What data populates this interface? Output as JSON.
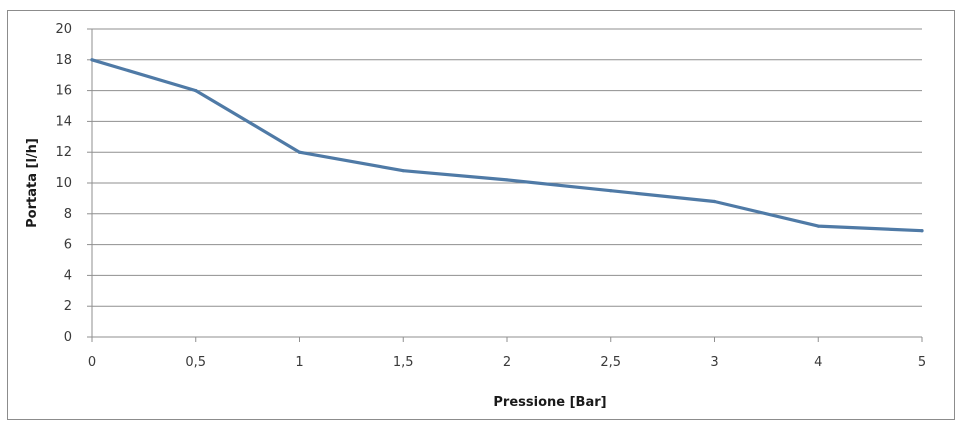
{
  "chart_data": {
    "type": "line",
    "title": "",
    "xlabel": "Pressione [Bar]",
    "ylabel": "Portata [l/h]",
    "x_tick_labels": [
      "0",
      "0,5",
      "1",
      "1,5",
      "2",
      "2,5",
      "3",
      "4",
      "5"
    ],
    "y_tick_labels": [
      "0",
      "2",
      "4",
      "6",
      "8",
      "10",
      "12",
      "14",
      "16",
      "18",
      "20"
    ],
    "ylim": [
      0,
      20
    ],
    "grid": true,
    "legend": "none",
    "series": [
      {
        "color": "#4f7aa6",
        "values": [
          18,
          16,
          12,
          10.8,
          10.2,
          9.5,
          8.8,
          7.2,
          6.9
        ]
      }
    ]
  }
}
